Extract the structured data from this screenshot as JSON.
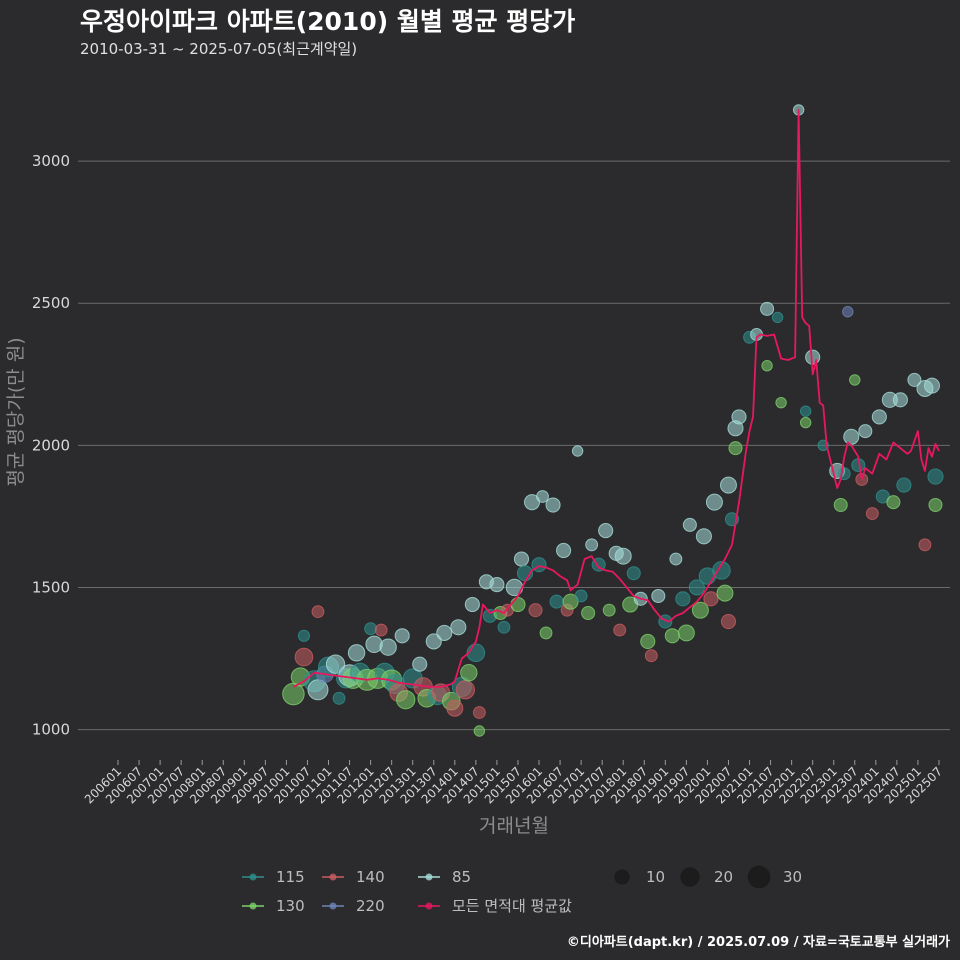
{
  "chart_data": {
    "type": "scatter",
    "title": "우정아이파크 아파트(2010) 월별 평균 평당가",
    "subtitle": "2010-03-31 ~ 2025-07-05(최근계약일)",
    "caption": "©디아파트(dapt.kr) / 2025.07.09 / 자료=국토교통부 실거래가",
    "xlabel": "거래년월",
    "ylabel": "평균 평당가(만 원)",
    "ylim": [
      900,
      3250
    ],
    "yticks": [
      1000,
      1500,
      2000,
      2500,
      3000
    ],
    "x_start": "2006-01",
    "x_end": "2025-09",
    "xticks": [
      "200601",
      "200607",
      "200701",
      "200707",
      "200801",
      "200807",
      "200901",
      "200907",
      "201001",
      "201007",
      "201101",
      "201107",
      "201201",
      "201207",
      "201301",
      "201307",
      "201401",
      "201407",
      "201501",
      "201507",
      "201601",
      "201607",
      "201701",
      "201707",
      "201801",
      "201807",
      "201901",
      "201907",
      "202001",
      "202007",
      "202101",
      "202107",
      "202201",
      "202207",
      "202301",
      "202307",
      "202401",
      "202407",
      "202501",
      "202507"
    ],
    "colors": {
      "115": "#2e8f8c",
      "130": "#7ccf6a",
      "140": "#c95c61",
      "220": "#6e84b6",
      "85": "#a6dcd8",
      "avg": "#e8185e"
    },
    "legend": {
      "series": [
        {
          "key": "115",
          "label": "115"
        },
        {
          "key": "140",
          "label": "140"
        },
        {
          "key": "85",
          "label": "85"
        },
        {
          "key": "130",
          "label": "130"
        },
        {
          "key": "220",
          "label": "220"
        },
        {
          "key": "avg",
          "label": "모든 면적대 평균값"
        }
      ],
      "sizes": [
        {
          "value": 10,
          "label": "10"
        },
        {
          "value": 20,
          "label": "20"
        },
        {
          "value": 30,
          "label": "30"
        }
      ]
    },
    "avg_line": [
      [
        "2010-03",
        1150
      ],
      [
        "2010-06",
        1170
      ],
      [
        "2010-09",
        1200
      ],
      [
        "2010-12",
        1195
      ],
      [
        "2011-03",
        1190
      ],
      [
        "2011-06",
        1185
      ],
      [
        "2011-09",
        1180
      ],
      [
        "2011-12",
        1175
      ],
      [
        "2012-03",
        1180
      ],
      [
        "2012-06",
        1175
      ],
      [
        "2012-09",
        1165
      ],
      [
        "2012-12",
        1160
      ],
      [
        "2013-03",
        1155
      ],
      [
        "2013-06",
        1150
      ],
      [
        "2013-09",
        1150
      ],
      [
        "2013-12",
        1160
      ],
      [
        "2014-01",
        1170
      ],
      [
        "2014-03",
        1250
      ],
      [
        "2014-05",
        1270
      ],
      [
        "2014-07",
        1310
      ],
      [
        "2014-08",
        1360
      ],
      [
        "2014-09",
        1440
      ],
      [
        "2014-11",
        1410
      ],
      [
        "2015-01",
        1420
      ],
      [
        "2015-03",
        1410
      ],
      [
        "2015-05",
        1440
      ],
      [
        "2015-07",
        1470
      ],
      [
        "2015-09",
        1520
      ],
      [
        "2015-11",
        1560
      ],
      [
        "2016-01",
        1575
      ],
      [
        "2016-03",
        1570
      ],
      [
        "2016-05",
        1560
      ],
      [
        "2016-07",
        1540
      ],
      [
        "2016-09",
        1525
      ],
      [
        "2016-10",
        1490
      ],
      [
        "2016-12",
        1510
      ],
      [
        "2017-02",
        1600
      ],
      [
        "2017-04",
        1610
      ],
      [
        "2017-06",
        1570
      ],
      [
        "2017-08",
        1560
      ],
      [
        "2017-10",
        1555
      ],
      [
        "2017-12",
        1530
      ],
      [
        "2018-02",
        1500
      ],
      [
        "2018-04",
        1470
      ],
      [
        "2018-06",
        1460
      ],
      [
        "2018-08",
        1455
      ],
      [
        "2018-10",
        1420
      ],
      [
        "2018-12",
        1390
      ],
      [
        "2019-02",
        1380
      ],
      [
        "2019-04",
        1400
      ],
      [
        "2019-06",
        1410
      ],
      [
        "2019-08",
        1430
      ],
      [
        "2019-10",
        1450
      ],
      [
        "2019-12",
        1480
      ],
      [
        "2020-02",
        1520
      ],
      [
        "2020-04",
        1560
      ],
      [
        "2020-06",
        1600
      ],
      [
        "2020-08",
        1650
      ],
      [
        "2020-10",
        1800
      ],
      [
        "2020-12",
        1980
      ],
      [
        "2021-01",
        2050
      ],
      [
        "2021-02",
        2100
      ],
      [
        "2021-03",
        2380
      ],
      [
        "2021-04",
        2390
      ],
      [
        "2021-06",
        2385
      ],
      [
        "2021-08",
        2390
      ],
      [
        "2021-10",
        2305
      ],
      [
        "2021-12",
        2300
      ],
      [
        "2022-02",
        2310
      ],
      [
        "2022-03",
        3180
      ],
      [
        "2022-04",
        2450
      ],
      [
        "2022-05",
        2430
      ],
      [
        "2022-06",
        2420
      ],
      [
        "2022-07",
        2250
      ],
      [
        "2022-08",
        2300
      ],
      [
        "2022-09",
        2150
      ],
      [
        "2022-10",
        2140
      ],
      [
        "2022-11",
        2000
      ],
      [
        "2022-12",
        1950
      ],
      [
        "2023-01",
        1900
      ],
      [
        "2023-02",
        1850
      ],
      [
        "2023-03",
        1880
      ],
      [
        "2023-04",
        1960
      ],
      [
        "2023-05",
        2010
      ],
      [
        "2023-06",
        2000
      ],
      [
        "2023-08",
        1960
      ],
      [
        "2023-09",
        1880
      ],
      [
        "2023-10",
        1920
      ],
      [
        "2023-12",
        1900
      ],
      [
        "2024-02",
        1970
      ],
      [
        "2024-04",
        1950
      ],
      [
        "2024-06",
        2010
      ],
      [
        "2024-08",
        1990
      ],
      [
        "2024-10",
        1970
      ],
      [
        "2024-11",
        1980
      ],
      [
        "2025-01",
        2050
      ],
      [
        "2025-02",
        1950
      ],
      [
        "2025-03",
        1910
      ],
      [
        "2025-04",
        1990
      ],
      [
        "2025-05",
        1960
      ],
      [
        "2025-06",
        2005
      ],
      [
        "2025-07",
        1980
      ]
    ],
    "points": [
      {
        "s": "130",
        "t": "2010-03",
        "v": 1125,
        "n": 30
      },
      {
        "s": "130",
        "t": "2010-05",
        "v": 1185,
        "n": 20
      },
      {
        "s": "140",
        "t": "2010-06",
        "v": 1255,
        "n": 18
      },
      {
        "s": "115",
        "t": "2010-06",
        "v": 1330,
        "n": 5
      },
      {
        "s": "115",
        "t": "2010-09",
        "v": 1170,
        "n": 28
      },
      {
        "s": "85",
        "t": "2010-10",
        "v": 1140,
        "n": 25
      },
      {
        "s": "140",
        "t": "2010-10",
        "v": 1415,
        "n": 6
      },
      {
        "s": "220",
        "t": "2010-12",
        "v": 1195,
        "n": 15
      },
      {
        "s": "115",
        "t": "2011-01",
        "v": 1220,
        "n": 25
      },
      {
        "s": "85",
        "t": "2011-03",
        "v": 1230,
        "n": 20
      },
      {
        "s": "115",
        "t": "2011-04",
        "v": 1110,
        "n": 6
      },
      {
        "s": "115",
        "t": "2011-06",
        "v": 1180,
        "n": 22
      },
      {
        "s": "85",
        "t": "2011-07",
        "v": 1190,
        "n": 30
      },
      {
        "s": "130",
        "t": "2011-08",
        "v": 1180,
        "n": 25
      },
      {
        "s": "85",
        "t": "2011-09",
        "v": 1270,
        "n": 15
      },
      {
        "s": "115",
        "t": "2011-10",
        "v": 1200,
        "n": 22
      },
      {
        "s": "130",
        "t": "2011-12",
        "v": 1175,
        "n": 28
      },
      {
        "s": "115",
        "t": "2012-01",
        "v": 1355,
        "n": 6
      },
      {
        "s": "85",
        "t": "2012-02",
        "v": 1300,
        "n": 15
      },
      {
        "s": "130",
        "t": "2012-03",
        "v": 1180,
        "n": 25
      },
      {
        "s": "140",
        "t": "2012-04",
        "v": 1350,
        "n": 6
      },
      {
        "s": "115",
        "t": "2012-05",
        "v": 1200,
        "n": 22
      },
      {
        "s": "85",
        "t": "2012-06",
        "v": 1290,
        "n": 15
      },
      {
        "s": "130",
        "t": "2012-07",
        "v": 1175,
        "n": 25
      },
      {
        "s": "115",
        "t": "2012-08",
        "v": 1160,
        "n": 22
      },
      {
        "s": "140",
        "t": "2012-09",
        "v": 1130,
        "n": 18
      },
      {
        "s": "85",
        "t": "2012-10",
        "v": 1330,
        "n": 10
      },
      {
        "s": "130",
        "t": "2012-11",
        "v": 1105,
        "n": 20
      },
      {
        "s": "115",
        "t": "2013-01",
        "v": 1180,
        "n": 22
      },
      {
        "s": "85",
        "t": "2013-03",
        "v": 1230,
        "n": 10
      },
      {
        "s": "140",
        "t": "2013-04",
        "v": 1150,
        "n": 20
      },
      {
        "s": "130",
        "t": "2013-05",
        "v": 1110,
        "n": 18
      },
      {
        "s": "85",
        "t": "2013-07",
        "v": 1310,
        "n": 12
      },
      {
        "s": "115",
        "t": "2013-08",
        "v": 1120,
        "n": 20
      },
      {
        "s": "140",
        "t": "2013-09",
        "v": 1130,
        "n": 18
      },
      {
        "s": "85",
        "t": "2013-10",
        "v": 1340,
        "n": 12
      },
      {
        "s": "130",
        "t": "2013-12",
        "v": 1100,
        "n": 18
      },
      {
        "s": "140",
        "t": "2014-01",
        "v": 1075,
        "n": 14
      },
      {
        "s": "85",
        "t": "2014-02",
        "v": 1360,
        "n": 12
      },
      {
        "s": "115",
        "t": "2014-03",
        "v": 1150,
        "n": 22
      },
      {
        "s": "140",
        "t": "2014-04",
        "v": 1140,
        "n": 20
      },
      {
        "s": "130",
        "t": "2014-05",
        "v": 1200,
        "n": 15
      },
      {
        "s": "85",
        "t": "2014-06",
        "v": 1440,
        "n": 10
      },
      {
        "s": "115",
        "t": "2014-07",
        "v": 1270,
        "n": 18
      },
      {
        "s": "130",
        "t": "2014-08",
        "v": 995,
        "n": 4
      },
      {
        "s": "140",
        "t": "2014-08",
        "v": 1060,
        "n": 6
      },
      {
        "s": "85",
        "t": "2014-10",
        "v": 1520,
        "n": 10
      },
      {
        "s": "115",
        "t": "2014-11",
        "v": 1400,
        "n": 8
      },
      {
        "s": "85",
        "t": "2015-01",
        "v": 1510,
        "n": 10
      },
      {
        "s": "130",
        "t": "2015-02",
        "v": 1410,
        "n": 8
      },
      {
        "s": "115",
        "t": "2015-03",
        "v": 1360,
        "n": 6
      },
      {
        "s": "140",
        "t": "2015-04",
        "v": 1420,
        "n": 6
      },
      {
        "s": "85",
        "t": "2015-06",
        "v": 1500,
        "n": 15
      },
      {
        "s": "130",
        "t": "2015-07",
        "v": 1440,
        "n": 10
      },
      {
        "s": "85",
        "t": "2015-08",
        "v": 1600,
        "n": 10
      },
      {
        "s": "115",
        "t": "2015-09",
        "v": 1550,
        "n": 12
      },
      {
        "s": "85",
        "t": "2015-11",
        "v": 1800,
        "n": 12
      },
      {
        "s": "140",
        "t": "2015-12",
        "v": 1420,
        "n": 8
      },
      {
        "s": "115",
        "t": "2016-01",
        "v": 1580,
        "n": 10
      },
      {
        "s": "85",
        "t": "2016-02",
        "v": 1820,
        "n": 6
      },
      {
        "s": "130",
        "t": "2016-03",
        "v": 1340,
        "n": 6
      },
      {
        "s": "85",
        "t": "2016-05",
        "v": 1790,
        "n": 10
      },
      {
        "s": "115",
        "t": "2016-06",
        "v": 1450,
        "n": 8
      },
      {
        "s": "85",
        "t": "2016-08",
        "v": 1630,
        "n": 10
      },
      {
        "s": "140",
        "t": "2016-09",
        "v": 1420,
        "n": 6
      },
      {
        "s": "130",
        "t": "2016-10",
        "v": 1450,
        "n": 12
      },
      {
        "s": "85",
        "t": "2016-12",
        "v": 1980,
        "n": 4
      },
      {
        "s": "115",
        "t": "2017-01",
        "v": 1470,
        "n": 6
      },
      {
        "s": "130",
        "t": "2017-03",
        "v": 1410,
        "n": 8
      },
      {
        "s": "85",
        "t": "2017-04",
        "v": 1650,
        "n": 6
      },
      {
        "s": "115",
        "t": "2017-06",
        "v": 1580,
        "n": 8
      },
      {
        "s": "85",
        "t": "2017-08",
        "v": 1700,
        "n": 10
      },
      {
        "s": "130",
        "t": "2017-09",
        "v": 1420,
        "n": 6
      },
      {
        "s": "85",
        "t": "2017-11",
        "v": 1620,
        "n": 10
      },
      {
        "s": "140",
        "t": "2017-12",
        "v": 1350,
        "n": 6
      },
      {
        "s": "85",
        "t": "2018-01",
        "v": 1610,
        "n": 14
      },
      {
        "s": "130",
        "t": "2018-03",
        "v": 1440,
        "n": 12
      },
      {
        "s": "115",
        "t": "2018-04",
        "v": 1550,
        "n": 8
      },
      {
        "s": "85",
        "t": "2018-06",
        "v": 1460,
        "n": 8
      },
      {
        "s": "130",
        "t": "2018-08",
        "v": 1310,
        "n": 10
      },
      {
        "s": "140",
        "t": "2018-09",
        "v": 1260,
        "n": 6
      },
      {
        "s": "85",
        "t": "2018-11",
        "v": 1470,
        "n": 8
      },
      {
        "s": "115",
        "t": "2019-01",
        "v": 1380,
        "n": 8
      },
      {
        "s": "130",
        "t": "2019-03",
        "v": 1330,
        "n": 10
      },
      {
        "s": "85",
        "t": "2019-04",
        "v": 1600,
        "n": 6
      },
      {
        "s": "115",
        "t": "2019-06",
        "v": 1460,
        "n": 10
      },
      {
        "s": "130",
        "t": "2019-07",
        "v": 1340,
        "n": 14
      },
      {
        "s": "85",
        "t": "2019-08",
        "v": 1720,
        "n": 8
      },
      {
        "s": "115",
        "t": "2019-10",
        "v": 1500,
        "n": 12
      },
      {
        "s": "130",
        "t": "2019-11",
        "v": 1420,
        "n": 14
      },
      {
        "s": "85",
        "t": "2019-12",
        "v": 1680,
        "n": 12
      },
      {
        "s": "115",
        "t": "2020-01",
        "v": 1540,
        "n": 15
      },
      {
        "s": "140",
        "t": "2020-02",
        "v": 1460,
        "n": 10
      },
      {
        "s": "85",
        "t": "2020-03",
        "v": 1800,
        "n": 14
      },
      {
        "s": "115",
        "t": "2020-05",
        "v": 1560,
        "n": 18
      },
      {
        "s": "130",
        "t": "2020-06",
        "v": 1480,
        "n": 14
      },
      {
        "s": "85",
        "t": "2020-07",
        "v": 1860,
        "n": 14
      },
      {
        "s": "140",
        "t": "2020-07",
        "v": 1380,
        "n": 10
      },
      {
        "s": "115",
        "t": "2020-08",
        "v": 1740,
        "n": 8
      },
      {
        "s": "85",
        "t": "2020-09",
        "v": 2060,
        "n": 12
      },
      {
        "s": "130",
        "t": "2020-09",
        "v": 1990,
        "n": 8
      },
      {
        "s": "85",
        "t": "2020-10",
        "v": 2100,
        "n": 10
      },
      {
        "s": "115",
        "t": "2021-01",
        "v": 2380,
        "n": 6
      },
      {
        "s": "85",
        "t": "2021-03",
        "v": 2390,
        "n": 6
      },
      {
        "s": "85",
        "t": "2021-06",
        "v": 2480,
        "n": 8
      },
      {
        "s": "130",
        "t": "2021-06",
        "v": 2280,
        "n": 4
      },
      {
        "s": "115",
        "t": "2021-09",
        "v": 2450,
        "n": 4
      },
      {
        "s": "130",
        "t": "2021-10",
        "v": 2150,
        "n": 4
      },
      {
        "s": "85",
        "t": "2022-03",
        "v": 3180,
        "n": 4
      },
      {
        "s": "115",
        "t": "2022-05",
        "v": 2120,
        "n": 4
      },
      {
        "s": "130",
        "t": "2022-05",
        "v": 2080,
        "n": 4
      },
      {
        "s": "85",
        "t": "2022-07",
        "v": 2310,
        "n": 10
      },
      {
        "s": "115",
        "t": "2022-10",
        "v": 2000,
        "n": 4
      },
      {
        "s": "85",
        "t": "2023-02",
        "v": 1910,
        "n": 12
      },
      {
        "s": "130",
        "t": "2023-03",
        "v": 1790,
        "n": 8
      },
      {
        "s": "115",
        "t": "2023-04",
        "v": 1900,
        "n": 6
      },
      {
        "s": "220",
        "t": "2023-05",
        "v": 2470,
        "n": 4
      },
      {
        "s": "85",
        "t": "2023-06",
        "v": 2030,
        "n": 12
      },
      {
        "s": "130",
        "t": "2023-07",
        "v": 2230,
        "n": 4
      },
      {
        "s": "115",
        "t": "2023-08",
        "v": 1930,
        "n": 8
      },
      {
        "s": "140",
        "t": "2023-09",
        "v": 1880,
        "n": 6
      },
      {
        "s": "85",
        "t": "2023-10",
        "v": 2050,
        "n": 8
      },
      {
        "s": "140",
        "t": "2023-12",
        "v": 1760,
        "n": 6
      },
      {
        "s": "85",
        "t": "2024-02",
        "v": 2100,
        "n": 10
      },
      {
        "s": "115",
        "t": "2024-03",
        "v": 1820,
        "n": 8
      },
      {
        "s": "85",
        "t": "2024-05",
        "v": 2160,
        "n": 12
      },
      {
        "s": "130",
        "t": "2024-06",
        "v": 1800,
        "n": 8
      },
      {
        "s": "85",
        "t": "2024-08",
        "v": 2160,
        "n": 10
      },
      {
        "s": "115",
        "t": "2024-09",
        "v": 1860,
        "n": 10
      },
      {
        "s": "85",
        "t": "2024-12",
        "v": 2230,
        "n": 8
      },
      {
        "s": "85",
        "t": "2025-03",
        "v": 2200,
        "n": 14
      },
      {
        "s": "140",
        "t": "2025-03",
        "v": 1650,
        "n": 6
      },
      {
        "s": "85",
        "t": "2025-05",
        "v": 2210,
        "n": 12
      },
      {
        "s": "115",
        "t": "2025-06",
        "v": 1890,
        "n": 12
      },
      {
        "s": "130",
        "t": "2025-06",
        "v": 1790,
        "n": 8
      }
    ]
  }
}
